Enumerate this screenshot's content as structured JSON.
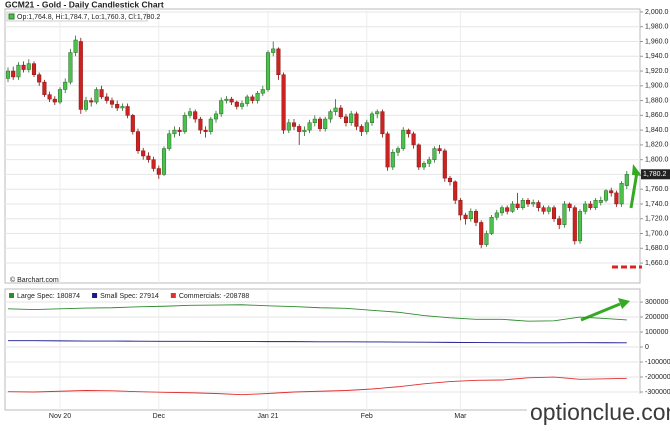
{
  "chart_data": [
    {
      "type": "candlestick",
      "title": "GCM21 - Gold - Daily Candlestick Chart",
      "ohlc_label": "Op:1,764.8, Hi:1,784.7, Lo:1,760.3, Cl:1,780.2",
      "credit": "© Barchart.com",
      "categories": [
        null,
        null,
        null,
        null,
        null,
        null,
        null,
        null,
        null,
        null,
        "Nov 20",
        null,
        null,
        null,
        null,
        null,
        null,
        null,
        null,
        null,
        null,
        null,
        null,
        null,
        null,
        null,
        null,
        null,
        null,
        "Dec",
        null,
        null,
        null,
        null,
        null,
        null,
        null,
        null,
        null,
        null,
        null,
        null,
        null,
        null,
        null,
        null,
        null,
        null,
        null,
        null,
        "Jan 21",
        null,
        null,
        null,
        null,
        null,
        null,
        null,
        null,
        null,
        null,
        null,
        null,
        null,
        null,
        null,
        null,
        null,
        null,
        "Feb",
        null,
        null,
        null,
        null,
        null,
        null,
        null,
        null,
        null,
        null,
        null,
        null,
        null,
        null,
        null,
        null,
        null,
        "Mar",
        null,
        null,
        null,
        null,
        null,
        null,
        null,
        null,
        null,
        null,
        null,
        null,
        null,
        null,
        null,
        null,
        null,
        null,
        null,
        null,
        null,
        null,
        null,
        null,
        null,
        null,
        null,
        null,
        null,
        null,
        null,
        null
      ],
      "open": [
        1910,
        1920,
        1912,
        1928,
        1922,
        1930,
        1915,
        1905,
        1888,
        1882,
        1878,
        1895,
        1905,
        1945,
        1960,
        1868,
        1880,
        1878,
        1895,
        1885,
        1880,
        1875,
        1870,
        1872,
        1860,
        1838,
        1812,
        1805,
        1800,
        1788,
        1780,
        1815,
        1835,
        1840,
        1838,
        1860,
        1865,
        1855,
        1840,
        1838,
        1855,
        1862,
        1880,
        1882,
        1878,
        1872,
        1876,
        1885,
        1880,
        1890,
        1895,
        1945,
        1950,
        1915,
        1840,
        1850,
        1845,
        1838,
        1840,
        1850,
        1855,
        1842,
        1855,
        1865,
        1870,
        1858,
        1850,
        1862,
        1845,
        1838,
        1850,
        1862,
        1865,
        1835,
        1790,
        1810,
        1815,
        1840,
        1835,
        1820,
        1790,
        1795,
        1800,
        1815,
        1812,
        1775,
        1770,
        1745,
        1725,
        1720,
        1730,
        1715,
        1685,
        1700,
        1722,
        1728,
        1735,
        1730,
        1740,
        1735,
        1745,
        1740,
        1742,
        1735,
        1730,
        1735,
        1720,
        1712,
        1740,
        1735,
        1690,
        1730,
        1740,
        1735,
        1742,
        1745,
        1758,
        1755,
        1740,
        1764.8
      ],
      "high": [
        1925,
        1926,
        1932,
        1933,
        1936,
        1933,
        1918,
        1908,
        1892,
        1886,
        1898,
        1910,
        1950,
        1968,
        1965,
        1885,
        1884,
        1898,
        1900,
        1890,
        1884,
        1880,
        1876,
        1876,
        1862,
        1842,
        1816,
        1810,
        1804,
        1792,
        1818,
        1840,
        1845,
        1844,
        1864,
        1870,
        1868,
        1858,
        1845,
        1858,
        1866,
        1884,
        1886,
        1885,
        1880,
        1880,
        1888,
        1888,
        1893,
        1900,
        1948,
        1960,
        1952,
        1918,
        1855,
        1855,
        1848,
        1845,
        1854,
        1860,
        1858,
        1858,
        1868,
        1882,
        1874,
        1862,
        1866,
        1865,
        1848,
        1854,
        1865,
        1868,
        1868,
        1838,
        1814,
        1818,
        1844,
        1842,
        1838,
        1822,
        1798,
        1804,
        1818,
        1820,
        1815,
        1778,
        1772,
        1748,
        1728,
        1734,
        1733,
        1718,
        1704,
        1725,
        1732,
        1738,
        1738,
        1744,
        1755,
        1748,
        1748,
        1746,
        1745,
        1738,
        1738,
        1738,
        1724,
        1744,
        1742,
        1738,
        1733,
        1744,
        1744,
        1748,
        1750,
        1760,
        1762,
        1758,
        1771,
        1784.7
      ],
      "low": [
        1905,
        1908,
        1908,
        1918,
        1918,
        1912,
        1900,
        1885,
        1878,
        1874,
        1875,
        1890,
        1902,
        1940,
        1862,
        1865,
        1872,
        1875,
        1882,
        1876,
        1870,
        1866,
        1866,
        1856,
        1834,
        1808,
        1800,
        1796,
        1784,
        1774,
        1778,
        1812,
        1830,
        1832,
        1835,
        1856,
        1850,
        1835,
        1830,
        1834,
        1850,
        1858,
        1876,
        1874,
        1868,
        1868,
        1872,
        1876,
        1876,
        1886,
        1892,
        1940,
        1908,
        1835,
        1836,
        1840,
        1820,
        1832,
        1836,
        1845,
        1838,
        1838,
        1850,
        1860,
        1855,
        1845,
        1846,
        1840,
        1832,
        1834,
        1846,
        1856,
        1830,
        1785,
        1786,
        1805,
        1812,
        1830,
        1815,
        1786,
        1786,
        1790,
        1796,
        1808,
        1770,
        1765,
        1740,
        1718,
        1712,
        1716,
        1710,
        1680,
        1682,
        1698,
        1718,
        1724,
        1726,
        1728,
        1732,
        1732,
        1736,
        1736,
        1730,
        1726,
        1726,
        1716,
        1706,
        1708,
        1730,
        1685,
        1686,
        1726,
        1732,
        1732,
        1738,
        1742,
        1750,
        1736,
        1736,
        1760.3
      ],
      "close": [
        1920,
        1912,
        1928,
        1922,
        1930,
        1915,
        1905,
        1888,
        1882,
        1878,
        1895,
        1905,
        1945,
        1962,
        1868,
        1880,
        1878,
        1895,
        1885,
        1880,
        1875,
        1870,
        1872,
        1860,
        1838,
        1812,
        1805,
        1800,
        1788,
        1780,
        1815,
        1835,
        1840,
        1838,
        1860,
        1865,
        1855,
        1840,
        1838,
        1855,
        1862,
        1880,
        1882,
        1878,
        1872,
        1876,
        1885,
        1880,
        1890,
        1895,
        1945,
        1950,
        1915,
        1840,
        1850,
        1845,
        1838,
        1840,
        1850,
        1855,
        1842,
        1855,
        1865,
        1870,
        1858,
        1850,
        1862,
        1845,
        1838,
        1850,
        1862,
        1865,
        1835,
        1790,
        1810,
        1815,
        1840,
        1835,
        1820,
        1790,
        1795,
        1800,
        1815,
        1812,
        1775,
        1770,
        1745,
        1725,
        1720,
        1730,
        1715,
        1685,
        1700,
        1722,
        1728,
        1735,
        1730,
        1740,
        1735,
        1745,
        1740,
        1742,
        1735,
        1730,
        1735,
        1720,
        1712,
        1740,
        1735,
        1690,
        1730,
        1740,
        1735,
        1745,
        1745,
        1758,
        1755,
        1740,
        1768,
        1780.2
      ],
      "up_color": "#4cc04c",
      "down_color": "#cc2222",
      "last_label": {
        "value": 1780.2,
        "label": "1,780.2"
      },
      "ylim": [
        1633,
        2004
      ],
      "yticks": [
        {
          "value": 1660,
          "label": "1,660.0"
        },
        {
          "value": 1680,
          "label": "1,680.0"
        },
        {
          "value": 1700,
          "label": "1,700.0"
        },
        {
          "value": 1720,
          "label": "1,720.0"
        },
        {
          "value": 1740,
          "label": "1,740.0"
        },
        {
          "value": 1760,
          "label": "1,760.0"
        },
        {
          "value": 1780,
          "label": "1,780.0"
        },
        {
          "value": 1800,
          "label": "1,800.0"
        },
        {
          "value": 1820,
          "label": "1,820.0"
        },
        {
          "value": 1840,
          "label": "1,840.0"
        },
        {
          "value": 1860,
          "label": "1,860.0"
        },
        {
          "value": 1880,
          "label": "1,880.0"
        },
        {
          "value": 1900,
          "label": "1,900.0"
        },
        {
          "value": 1920,
          "label": "1,920.0"
        },
        {
          "value": 1940,
          "label": "1,940.0"
        },
        {
          "value": 1960,
          "label": "1,960.0"
        },
        {
          "value": 1980,
          "label": "1,980.0"
        },
        {
          "value": 2000,
          "label": "2,000.0"
        }
      ],
      "grid": true
    },
    {
      "type": "line",
      "series": [
        {
          "name": "Large Spec: 180874",
          "color": "#2e8b2e",
          "x": [
            0,
            5,
            10,
            15,
            20,
            25,
            30,
            35,
            40,
            45,
            50,
            55,
            60,
            65,
            70,
            75,
            80,
            85,
            90,
            95,
            100,
            105,
            110,
            115,
            119
          ],
          "values": [
            255000,
            250000,
            255000,
            260000,
            262000,
            268000,
            272000,
            278000,
            280000,
            282000,
            275000,
            270000,
            262000,
            258000,
            245000,
            232000,
            210000,
            195000,
            185000,
            185000,
            172000,
            175000,
            200000,
            190000,
            180874
          ]
        },
        {
          "name": "Small Spec: 27914",
          "color": "#1a1a8c",
          "x": [
            0,
            5,
            10,
            15,
            20,
            25,
            30,
            35,
            40,
            45,
            50,
            55,
            60,
            65,
            70,
            75,
            80,
            85,
            90,
            95,
            100,
            105,
            110,
            115,
            119
          ],
          "values": [
            42000,
            42000,
            41000,
            40000,
            40000,
            39000,
            38000,
            38000,
            37000,
            37000,
            36000,
            36000,
            35000,
            35000,
            34000,
            33000,
            32000,
            31000,
            30000,
            29000,
            28000,
            28000,
            29000,
            28500,
            27914
          ]
        },
        {
          "name": "Commercials: -208788",
          "color": "#e03030",
          "x": [
            0,
            5,
            10,
            15,
            20,
            25,
            30,
            35,
            40,
            45,
            50,
            55,
            60,
            65,
            70,
            75,
            80,
            85,
            90,
            95,
            100,
            105,
            110,
            115,
            119
          ],
          "values": [
            -298000,
            -300000,
            -295000,
            -290000,
            -292000,
            -298000,
            -302000,
            -305000,
            -310000,
            -318000,
            -310000,
            -300000,
            -295000,
            -290000,
            -280000,
            -265000,
            -245000,
            -230000,
            -222000,
            -220000,
            -205000,
            -200000,
            -215000,
            -212000,
            -208788
          ]
        }
      ],
      "ylim": [
        -420000,
        387000
      ],
      "yticks": [
        -300000,
        -200000,
        -100000,
        0,
        100000,
        200000,
        300000
      ],
      "grid": true
    }
  ],
  "watermark": "optionclue.com"
}
